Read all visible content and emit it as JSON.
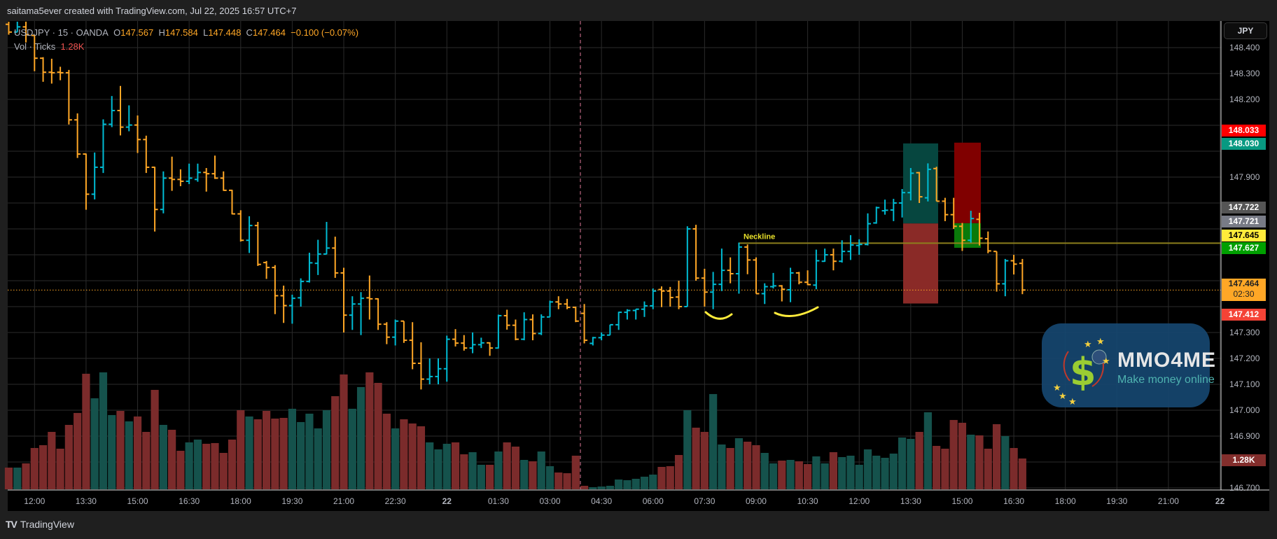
{
  "header": {
    "caption": "saitama5ever created with TradingView.com, Jul 22, 2025 16:57 UTC+7"
  },
  "legend": {
    "symbol": "USDJPY · 15 · OANDA",
    "open_label": "O",
    "open": "147.567",
    "high_label": "H",
    "high": "147.584",
    "low_label": "L",
    "low": "147.448",
    "close_label": "C",
    "close": "147.464",
    "change": "−0.100 (−0.07%)",
    "volume_label": "Vol · Ticks",
    "volume": "1.28K"
  },
  "currency_button": "JPY",
  "price_badges": [
    {
      "text": "148.033",
      "bg": "#ff0000",
      "fg": "#ffffff"
    },
    {
      "text": "148.030",
      "bg": "#089981",
      "fg": "#ffffff"
    },
    {
      "text": "147.722",
      "bg": "#555555",
      "fg": "#ffffff"
    },
    {
      "text": "147.721",
      "bg": "#787b86",
      "fg": "#ffffff"
    },
    {
      "text": "147.645",
      "bg": "#ffeb3b",
      "fg": "#000000"
    },
    {
      "text": "147.627",
      "bg": "#00a000",
      "fg": "#ffffff"
    },
    {
      "text": "147.464",
      "sub": "02:30",
      "bg": "#ffa726",
      "fg": "#222222"
    },
    {
      "text": "147.412",
      "bg": "#f44336",
      "fg": "#ffffff"
    },
    {
      "text": "1.28K",
      "bg": "rgba(239,83,80,0.55)",
      "fg": "#ffffff"
    }
  ],
  "footer": {
    "brand": "TradingView"
  },
  "watermark": {
    "title": "MMO4ME",
    "tagline": "Make money online"
  },
  "annotations": {
    "neckline_label": "Neckline",
    "neckline_price": 147.645
  },
  "positions": {
    "long": {
      "entry": 147.721,
      "target": 148.03,
      "stop": 147.412
    },
    "short": {
      "entry": 147.722,
      "stop": 148.033,
      "target": 147.627
    }
  },
  "colors": {
    "up": "#00bcd4",
    "down": "#ffa726",
    "vol_up": "#15524c",
    "vol_down": "#7b2b2b",
    "grid": "#2b2b2b",
    "current_price": "#ffa726",
    "session_break": "#e07a9a",
    "neckline": "#8c7f1c",
    "drawing": "#ffeb3b"
  },
  "chart_data": {
    "type": "ohlc-bar",
    "symbol": "USDJPY",
    "interval_minutes": 15,
    "first_bar_time": "11:15",
    "current_price": 147.464,
    "ylim": [
      146.7,
      148.5
    ],
    "y_ticks": [
      "148.400",
      "148.300",
      "148.200",
      "147.900",
      "147.300",
      "147.200",
      "147.100",
      "147.000",
      "146.900",
      "146.700"
    ],
    "y_tick_values": [
      148.4,
      148.3,
      148.2,
      147.9,
      147.3,
      147.2,
      147.1,
      147.0,
      146.9,
      146.7
    ],
    "x_ticks": [
      "12:00",
      "13:30",
      "15:00",
      "16:30",
      "18:00",
      "19:30",
      "21:00",
      "22:30",
      "22",
      "01:30",
      "03:00",
      "04:30",
      "06:00",
      "07:30",
      "09:00",
      "10:30",
      "12:00",
      "13:30",
      "15:00",
      "16:30",
      "18:00",
      "19:30",
      "21:00",
      "22"
    ],
    "x_tick_bar_index": [
      3,
      9,
      15,
      21,
      27,
      33,
      39,
      45,
      51,
      57,
      63,
      69,
      75,
      81,
      87,
      93,
      99,
      105,
      111,
      117,
      123,
      129,
      135,
      141
    ],
    "session_break_after_bar_index": 66,
    "bars_ohlcv": [
      [
        148.49,
        148.5,
        148.45,
        148.46,
        902
      ],
      [
        148.46,
        148.5,
        148.46,
        148.48,
        902
      ],
      [
        148.48,
        148.5,
        148.42,
        148.45,
        1077
      ],
      [
        148.447,
        148.45,
        148.309,
        148.359,
        1717
      ],
      [
        148.359,
        148.363,
        148.268,
        148.305,
        1833
      ],
      [
        148.305,
        148.357,
        148.261,
        148.303,
        2386
      ],
      [
        148.305,
        148.326,
        148.274,
        148.303,
        1688
      ],
      [
        148.303,
        148.314,
        148.103,
        148.121,
        2677
      ],
      [
        148.121,
        148.146,
        147.974,
        147.989,
        3172
      ],
      [
        147.989,
        147.991,
        147.774,
        147.834,
        4802
      ],
      [
        147.834,
        147.995,
        147.814,
        147.938,
        3783
      ],
      [
        147.938,
        148.123,
        147.916,
        148.104,
        4860
      ],
      [
        148.104,
        148.213,
        148.093,
        148.157,
        3085
      ],
      [
        148.157,
        148.252,
        148.061,
        148.093,
        3259
      ],
      [
        148.093,
        148.177,
        148.077,
        148.101,
        2823
      ],
      [
        148.101,
        148.138,
        147.993,
        148.045,
        3026
      ],
      [
        148.045,
        148.06,
        147.916,
        147.938,
        2386
      ],
      [
        147.938,
        147.94,
        147.69,
        147.775,
        4132
      ],
      [
        147.775,
        147.922,
        147.76,
        147.896,
        2677
      ],
      [
        147.896,
        147.979,
        147.847,
        147.891,
        2474
      ],
      [
        147.891,
        147.93,
        147.865,
        147.884,
        1601
      ],
      [
        147.884,
        147.952,
        147.873,
        147.896,
        1950
      ],
      [
        147.891,
        147.952,
        147.882,
        147.918,
        2066
      ],
      [
        147.918,
        147.935,
        147.844,
        147.913,
        1892
      ],
      [
        147.913,
        147.983,
        147.893,
        147.896,
        1921
      ],
      [
        147.896,
        147.922,
        147.847,
        147.849,
        1513
      ],
      [
        147.849,
        147.851,
        147.756,
        147.758,
        2066
      ],
      [
        147.758,
        147.772,
        147.651,
        147.656,
        3288
      ],
      [
        147.656,
        147.749,
        147.607,
        147.713,
        3026
      ],
      [
        147.713,
        147.727,
        147.557,
        147.563,
        2910
      ],
      [
        147.57,
        147.576,
        147.507,
        147.551,
        3259
      ],
      [
        147.551,
        147.56,
        147.371,
        147.442,
        2939
      ],
      [
        147.442,
        147.481,
        147.337,
        147.404,
        2968
      ],
      [
        147.404,
        147.446,
        147.334,
        147.432,
        3347
      ],
      [
        147.434,
        147.509,
        147.4,
        147.497,
        2794
      ],
      [
        147.497,
        147.608,
        147.493,
        147.569,
        3143
      ],
      [
        147.567,
        147.658,
        147.522,
        147.603,
        2532
      ],
      [
        147.603,
        147.727,
        147.602,
        147.626,
        3288
      ],
      [
        147.626,
        147.67,
        147.511,
        147.53,
        3870
      ],
      [
        147.53,
        147.55,
        147.3,
        147.367,
        4772
      ],
      [
        147.367,
        147.44,
        147.31,
        147.41,
        3347
      ],
      [
        147.41,
        147.456,
        147.29,
        147.432,
        4249
      ],
      [
        147.434,
        147.52,
        147.35,
        147.43,
        4860
      ],
      [
        147.43,
        147.432,
        147.31,
        147.332,
        4423
      ],
      [
        147.332,
        147.34,
        147.255,
        147.282,
        3143
      ],
      [
        147.282,
        147.35,
        147.25,
        147.344,
        2532
      ],
      [
        147.344,
        147.344,
        147.26,
        147.27,
        2910
      ],
      [
        147.27,
        147.34,
        147.158,
        147.181,
        2735
      ],
      [
        147.181,
        147.262,
        147.08,
        147.12,
        2619
      ],
      [
        147.12,
        147.2,
        147.1,
        147.13,
        1950
      ],
      [
        147.13,
        147.2,
        147.1,
        147.16,
        1659
      ],
      [
        147.16,
        147.288,
        147.11,
        147.274,
        1892
      ],
      [
        147.274,
        147.313,
        147.246,
        147.259,
        1950
      ],
      [
        147.259,
        147.29,
        147.23,
        147.24,
        1455
      ],
      [
        147.24,
        147.3,
        147.22,
        147.253,
        1542
      ],
      [
        147.253,
        147.28,
        147.24,
        147.26,
        1019
      ],
      [
        147.26,
        147.262,
        147.21,
        147.24,
        1019
      ],
      [
        147.24,
        147.369,
        147.238,
        147.365,
        1571
      ],
      [
        147.365,
        147.388,
        147.311,
        147.328,
        1950
      ],
      [
        147.328,
        147.35,
        147.27,
        147.274,
        1775
      ],
      [
        147.274,
        147.378,
        147.27,
        147.35,
        1222
      ],
      [
        147.35,
        147.37,
        147.27,
        147.296,
        1164
      ],
      [
        147.296,
        147.37,
        147.29,
        147.36,
        1571
      ],
      [
        147.36,
        147.423,
        147.36,
        147.418,
        960
      ],
      [
        147.418,
        147.44,
        147.39,
        147.41,
        698
      ],
      [
        147.41,
        147.43,
        147.39,
        147.397,
        669
      ],
      [
        147.397,
        147.4,
        147.34,
        147.344,
        1397
      ],
      [
        147.374,
        147.41,
        147.258,
        147.27,
        146
      ],
      [
        147.258,
        147.283,
        147.25,
        147.28,
        87
      ],
      [
        147.28,
        147.3,
        147.27,
        147.29,
        116
      ],
      [
        147.29,
        147.33,
        147.29,
        147.33,
        146
      ],
      [
        147.33,
        147.38,
        147.31,
        147.378,
        407
      ],
      [
        147.378,
        147.39,
        147.35,
        147.385,
        378
      ],
      [
        147.385,
        147.39,
        147.35,
        147.39,
        437
      ],
      [
        147.39,
        147.42,
        147.36,
        147.403,
        524
      ],
      [
        147.403,
        147.47,
        147.39,
        147.46,
        611
      ],
      [
        147.466,
        147.478,
        147.398,
        147.46,
        931
      ],
      [
        147.46,
        147.476,
        147.4,
        147.435,
        960
      ],
      [
        147.437,
        147.5,
        147.39,
        147.4,
        1426
      ],
      [
        147.4,
        147.71,
        147.4,
        147.7,
        3288
      ],
      [
        147.7,
        147.716,
        147.5,
        147.51,
        2561
      ],
      [
        147.51,
        147.546,
        147.4,
        147.456,
        2386
      ],
      [
        147.456,
        147.534,
        147.39,
        147.486,
        3958
      ],
      [
        147.486,
        147.624,
        147.46,
        147.54,
        1862
      ],
      [
        147.54,
        147.59,
        147.49,
        147.527,
        1717
      ],
      [
        147.527,
        147.647,
        147.45,
        147.63,
        2124
      ],
      [
        147.63,
        147.64,
        147.525,
        147.58,
        1979
      ],
      [
        147.58,
        147.59,
        147.45,
        147.45,
        1833
      ],
      [
        147.45,
        147.49,
        147.41,
        147.477,
        1513
      ],
      [
        147.477,
        147.53,
        147.47,
        147.48,
        1077
      ],
      [
        147.48,
        147.483,
        147.42,
        147.467,
        1193
      ],
      [
        147.465,
        147.55,
        147.417,
        147.53,
        1222
      ],
      [
        147.53,
        147.534,
        147.486,
        147.494,
        1164
      ],
      [
        147.494,
        147.54,
        147.483,
        147.485,
        1048
      ],
      [
        147.483,
        147.62,
        147.467,
        147.577,
        1368
      ],
      [
        147.575,
        147.624,
        147.573,
        147.6,
        1077
      ],
      [
        147.6,
        147.624,
        147.54,
        147.575,
        1542
      ],
      [
        147.575,
        147.656,
        147.57,
        147.613,
        1339
      ],
      [
        147.613,
        147.676,
        147.58,
        147.638,
        1397
      ],
      [
        147.636,
        147.66,
        147.6,
        147.64,
        1019
      ],
      [
        147.64,
        147.76,
        147.636,
        147.72,
        1659
      ],
      [
        147.723,
        147.786,
        147.72,
        147.782,
        1397
      ],
      [
        147.77,
        147.813,
        147.755,
        147.772,
        1310
      ],
      [
        147.773,
        147.816,
        147.73,
        147.8,
        1484
      ],
      [
        147.8,
        147.854,
        147.744,
        147.84,
        2153
      ],
      [
        147.84,
        147.935,
        147.81,
        147.915,
        2095
      ],
      [
        147.917,
        147.92,
        147.8,
        147.824,
        2386
      ],
      [
        147.82,
        147.953,
        147.806,
        147.93,
        3201
      ],
      [
        147.933,
        147.94,
        147.807,
        147.807,
        1804
      ],
      [
        147.807,
        147.82,
        147.73,
        147.755,
        1688
      ],
      [
        147.755,
        147.82,
        147.7,
        147.71,
        2881
      ],
      [
        147.71,
        147.723,
        147.615,
        147.656,
        2765
      ],
      [
        147.656,
        147.77,
        147.647,
        147.74,
        2270
      ],
      [
        147.737,
        147.762,
        147.636,
        147.664,
        2241
      ],
      [
        147.662,
        147.69,
        147.606,
        147.615,
        1688
      ],
      [
        147.613,
        147.613,
        147.458,
        147.488,
        2706
      ],
      [
        147.488,
        147.584,
        147.44,
        147.577,
        2212
      ],
      [
        147.577,
        147.6,
        147.524,
        147.564,
        1717
      ],
      [
        147.567,
        147.584,
        147.448,
        147.464,
        1280
      ]
    ]
  }
}
